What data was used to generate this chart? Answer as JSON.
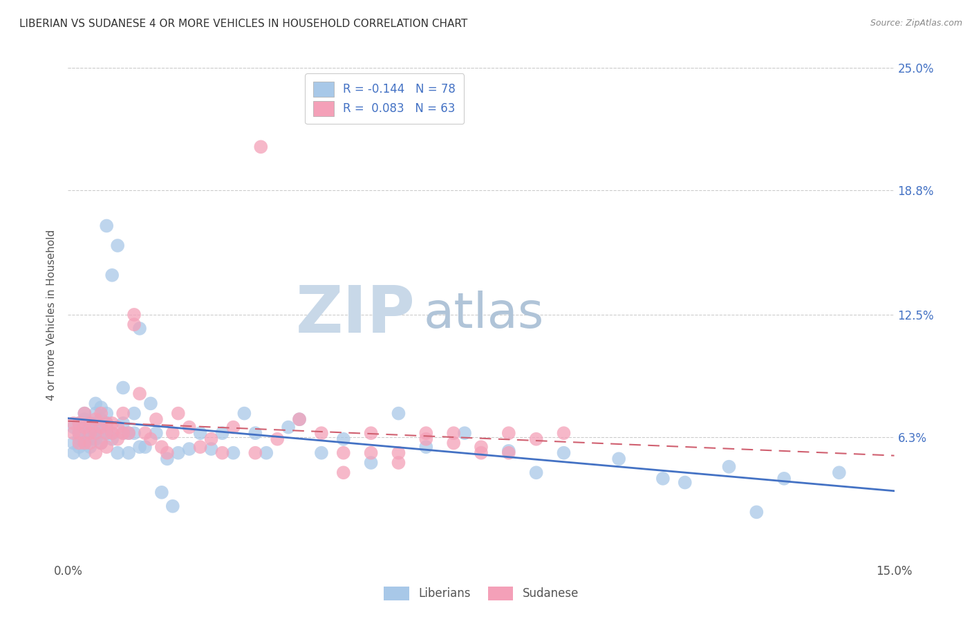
{
  "title": "LIBERIAN VS SUDANESE 4 OR MORE VEHICLES IN HOUSEHOLD CORRELATION CHART",
  "source": "Source: ZipAtlas.com",
  "ylabel": "4 or more Vehicles in Household",
  "xlim": [
    0.0,
    0.15
  ],
  "ylim": [
    0.0,
    0.25
  ],
  "liberian_R": -0.144,
  "liberian_N": 78,
  "sudanese_R": 0.083,
  "sudanese_N": 63,
  "liberian_color": "#a8c8e8",
  "sudanese_color": "#f4a0b8",
  "liberian_line_color": "#4472c4",
  "sudanese_line_color": "#d06070",
  "watermark_zip": "ZIP",
  "watermark_atlas": "atlas",
  "watermark_color_zip": "#c8d8e8",
  "watermark_color_atlas": "#b8c8d8",
  "grid_color": "#cccccc",
  "right_tick_color": "#4472c4",
  "liberian_x": [
    0.001,
    0.001,
    0.001,
    0.002,
    0.002,
    0.002,
    0.002,
    0.003,
    0.003,
    0.003,
    0.003,
    0.003,
    0.004,
    0.004,
    0.004,
    0.004,
    0.004,
    0.005,
    0.005,
    0.005,
    0.005,
    0.005,
    0.006,
    0.006,
    0.006,
    0.006,
    0.006,
    0.007,
    0.007,
    0.007,
    0.007,
    0.008,
    0.008,
    0.008,
    0.009,
    0.009,
    0.01,
    0.01,
    0.01,
    0.011,
    0.011,
    0.012,
    0.012,
    0.013,
    0.013,
    0.014,
    0.015,
    0.016,
    0.017,
    0.018,
    0.019,
    0.02,
    0.022,
    0.024,
    0.026,
    0.028,
    0.03,
    0.032,
    0.034,
    0.036,
    0.04,
    0.042,
    0.046,
    0.05,
    0.055,
    0.06,
    0.065,
    0.072,
    0.08,
    0.085,
    0.09,
    0.1,
    0.108,
    0.112,
    0.12,
    0.125,
    0.13,
    0.14
  ],
  "liberian_y": [
    0.068,
    0.06,
    0.055,
    0.065,
    0.07,
    0.062,
    0.058,
    0.072,
    0.065,
    0.06,
    0.055,
    0.075,
    0.065,
    0.07,
    0.058,
    0.062,
    0.068,
    0.08,
    0.065,
    0.07,
    0.075,
    0.062,
    0.065,
    0.072,
    0.068,
    0.06,
    0.078,
    0.065,
    0.17,
    0.07,
    0.075,
    0.065,
    0.062,
    0.145,
    0.16,
    0.055,
    0.065,
    0.07,
    0.088,
    0.065,
    0.055,
    0.065,
    0.075,
    0.058,
    0.118,
    0.058,
    0.08,
    0.065,
    0.035,
    0.052,
    0.028,
    0.055,
    0.057,
    0.065,
    0.057,
    0.065,
    0.055,
    0.075,
    0.065,
    0.055,
    0.068,
    0.072,
    0.055,
    0.062,
    0.05,
    0.075,
    0.058,
    0.065,
    0.056,
    0.045,
    0.055,
    0.052,
    0.042,
    0.04,
    0.048,
    0.025,
    0.042,
    0.045
  ],
  "sudanese_x": [
    0.001,
    0.001,
    0.002,
    0.002,
    0.002,
    0.003,
    0.003,
    0.003,
    0.004,
    0.004,
    0.004,
    0.005,
    0.005,
    0.005,
    0.006,
    0.006,
    0.006,
    0.007,
    0.007,
    0.007,
    0.008,
    0.008,
    0.009,
    0.009,
    0.01,
    0.01,
    0.011,
    0.012,
    0.012,
    0.013,
    0.014,
    0.015,
    0.016,
    0.017,
    0.018,
    0.019,
    0.02,
    0.022,
    0.024,
    0.026,
    0.028,
    0.03,
    0.034,
    0.035,
    0.038,
    0.042,
    0.046,
    0.05,
    0.055,
    0.06,
    0.065,
    0.07,
    0.075,
    0.08,
    0.085,
    0.09,
    0.05,
    0.055,
    0.06,
    0.065,
    0.07,
    0.075,
    0.08
  ],
  "sudanese_y": [
    0.065,
    0.07,
    0.06,
    0.065,
    0.07,
    0.06,
    0.068,
    0.075,
    0.065,
    0.07,
    0.06,
    0.055,
    0.065,
    0.072,
    0.06,
    0.068,
    0.075,
    0.065,
    0.07,
    0.058,
    0.065,
    0.07,
    0.062,
    0.068,
    0.065,
    0.075,
    0.065,
    0.125,
    0.12,
    0.085,
    0.065,
    0.062,
    0.072,
    0.058,
    0.055,
    0.065,
    0.075,
    0.068,
    0.058,
    0.062,
    0.055,
    0.068,
    0.055,
    0.21,
    0.062,
    0.072,
    0.065,
    0.055,
    0.065,
    0.055,
    0.062,
    0.065,
    0.058,
    0.055,
    0.062,
    0.065,
    0.045,
    0.055,
    0.05,
    0.065,
    0.06,
    0.055,
    0.065
  ]
}
